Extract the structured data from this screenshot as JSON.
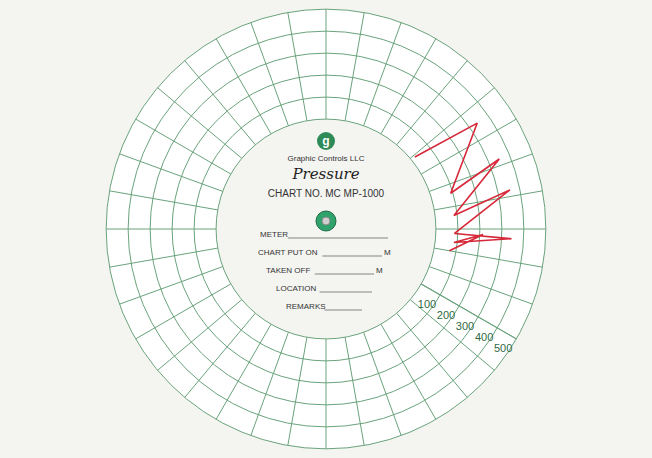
{
  "chart_data": {
    "type": "polar_line",
    "x": [
      39,
      35,
      16,
      22,
      6,
      12,
      -2,
      -3,
      -6,
      -2,
      -10
    ],
    "values": [
      20,
      340,
      90,
      350,
      85,
      355,
      85,
      345,
      85,
      215,
      70
    ],
    "color": "#d62839",
    "ylim": [
      0,
      500
    ],
    "yticks": [
      100,
      200,
      300,
      400,
      500
    ],
    "grid": true,
    "tick_labels": "y"
  },
  "card": {
    "logo": "g",
    "brand": "Graphic Controls LLC",
    "heading": "Pressure",
    "chart_no": "CHART NO. MC MP-1000",
    "fields": [
      "METER",
      "CHART PUT ON",
      "TAKEN OFF",
      "LOCATION",
      "REMARKS"
    ],
    "unit": "M"
  }
}
